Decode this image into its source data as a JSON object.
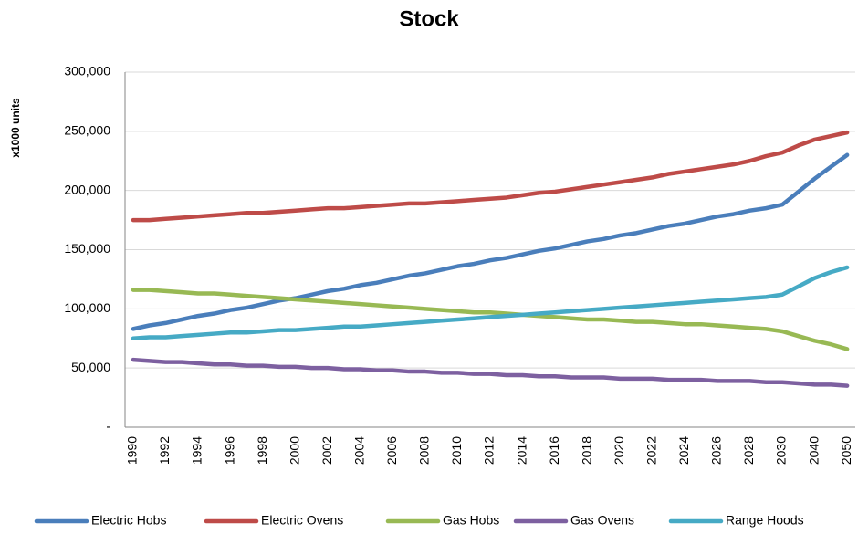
{
  "chart_data": {
    "type": "line",
    "title": "Stock",
    "y_label": "x1000 units",
    "categories": [
      "1990",
      null,
      "1992",
      null,
      "1994",
      null,
      "1996",
      null,
      "1998",
      null,
      "2000",
      null,
      "2002",
      null,
      "2004",
      null,
      "2006",
      null,
      "2008",
      null,
      "2010",
      null,
      "2012",
      null,
      "2014",
      null,
      "2016",
      null,
      "2018",
      null,
      "2020",
      null,
      "2022",
      null,
      "2024",
      null,
      "2026",
      null,
      "2028",
      null,
      "2030",
      null,
      "2040",
      null,
      "2050"
    ],
    "series": [
      {
        "name": "Electric Hobs",
        "color": "#4a7ebb",
        "values": [
          83000,
          86000,
          88000,
          91000,
          94000,
          96000,
          99000,
          101000,
          104000,
          107000,
          109000,
          112000,
          115000,
          117000,
          120000,
          122000,
          125000,
          128000,
          130000,
          133000,
          136000,
          138000,
          141000,
          143000,
          146000,
          149000,
          151000,
          154000,
          157000,
          159000,
          162000,
          164000,
          167000,
          170000,
          172000,
          175000,
          178000,
          180000,
          183000,
          185000,
          188000,
          199000,
          210000,
          220000,
          230000
        ]
      },
      {
        "name": "Electric Ovens",
        "color": "#be4b48",
        "values": [
          175000,
          175000,
          176000,
          177000,
          178000,
          179000,
          180000,
          181000,
          181000,
          182000,
          183000,
          184000,
          185000,
          185000,
          186000,
          187000,
          188000,
          189000,
          189000,
          190000,
          191000,
          192000,
          193000,
          194000,
          196000,
          198000,
          199000,
          201000,
          203000,
          205000,
          207000,
          209000,
          211000,
          214000,
          216000,
          218000,
          220000,
          222000,
          225000,
          229000,
          232000,
          238000,
          243000,
          246000,
          249000
        ]
      },
      {
        "name": "Gas Hobs",
        "color": "#98b954",
        "values": [
          116000,
          116000,
          115000,
          114000,
          113000,
          113000,
          112000,
          111000,
          110000,
          109000,
          108000,
          107000,
          106000,
          105000,
          104000,
          103000,
          102000,
          101000,
          100000,
          99000,
          98000,
          97000,
          97000,
          96000,
          95000,
          94000,
          93000,
          92000,
          91000,
          91000,
          90000,
          89000,
          89000,
          88000,
          87000,
          87000,
          86000,
          85000,
          84000,
          83000,
          81000,
          77000,
          73000,
          70000,
          66000
        ]
      },
      {
        "name": "Gas Ovens",
        "color": "#7d60a0",
        "values": [
          57000,
          56000,
          55000,
          55000,
          54000,
          53000,
          53000,
          52000,
          52000,
          51000,
          51000,
          50000,
          50000,
          49000,
          49000,
          48000,
          48000,
          47000,
          47000,
          46000,
          46000,
          45000,
          45000,
          44000,
          44000,
          43000,
          43000,
          42000,
          42000,
          42000,
          41000,
          41000,
          41000,
          40000,
          40000,
          40000,
          39000,
          39000,
          39000,
          38000,
          38000,
          37000,
          36000,
          36000,
          35000
        ]
      },
      {
        "name": "Range Hoods",
        "color": "#46aac5",
        "values": [
          75000,
          76000,
          76000,
          77000,
          78000,
          79000,
          80000,
          80000,
          81000,
          82000,
          82000,
          83000,
          84000,
          85000,
          85000,
          86000,
          87000,
          88000,
          89000,
          90000,
          91000,
          92000,
          93000,
          94000,
          95000,
          96000,
          97000,
          98000,
          99000,
          100000,
          101000,
          102000,
          103000,
          104000,
          105000,
          106000,
          107000,
          108000,
          109000,
          110000,
          112000,
          119000,
          126000,
          131000,
          135000
        ]
      }
    ],
    "ylim": [
      0,
      300000
    ],
    "yticks": [
      {
        "value": 0,
        "label": "-"
      },
      {
        "value": 50000,
        "label": "50,000"
      },
      {
        "value": 100000,
        "label": "100,000"
      },
      {
        "value": 150000,
        "label": "150,000"
      },
      {
        "value": 200000,
        "label": "200,000"
      },
      {
        "value": 250000,
        "label": "250,000"
      },
      {
        "value": 300000,
        "label": "300,000"
      }
    ],
    "grid": true,
    "legend": "bottom"
  }
}
